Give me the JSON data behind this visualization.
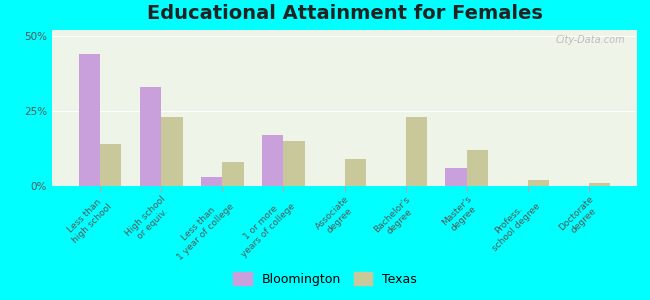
{
  "title": "Educational Attainment for Females",
  "categories": [
    "Less than\nhigh school",
    "High school\nor equiv.",
    "Less than\n1 year of college",
    "1 or more\nyears of college",
    "Associate\ndegree",
    "Bachelor's\ndegree",
    "Master's\ndegree",
    "Profess.\nschool degree",
    "Doctorate\ndegree"
  ],
  "bloomington": [
    44,
    33,
    3,
    17,
    0,
    0,
    6,
    0,
    0
  ],
  "texas": [
    14,
    23,
    8,
    15,
    9,
    23,
    12,
    2,
    1
  ],
  "bloomington_color": "#c9a0dc",
  "texas_color": "#c8c89a",
  "background_color": "#00ffff",
  "plot_bg_color": "#eef4e8",
  "yticks": [
    0,
    25,
    50
  ],
  "ylim": [
    0,
    52
  ],
  "bar_width": 0.35,
  "title_fontsize": 14,
  "tick_fontsize": 6.5,
  "legend_fontsize": 9,
  "watermark": "City-Data.com"
}
